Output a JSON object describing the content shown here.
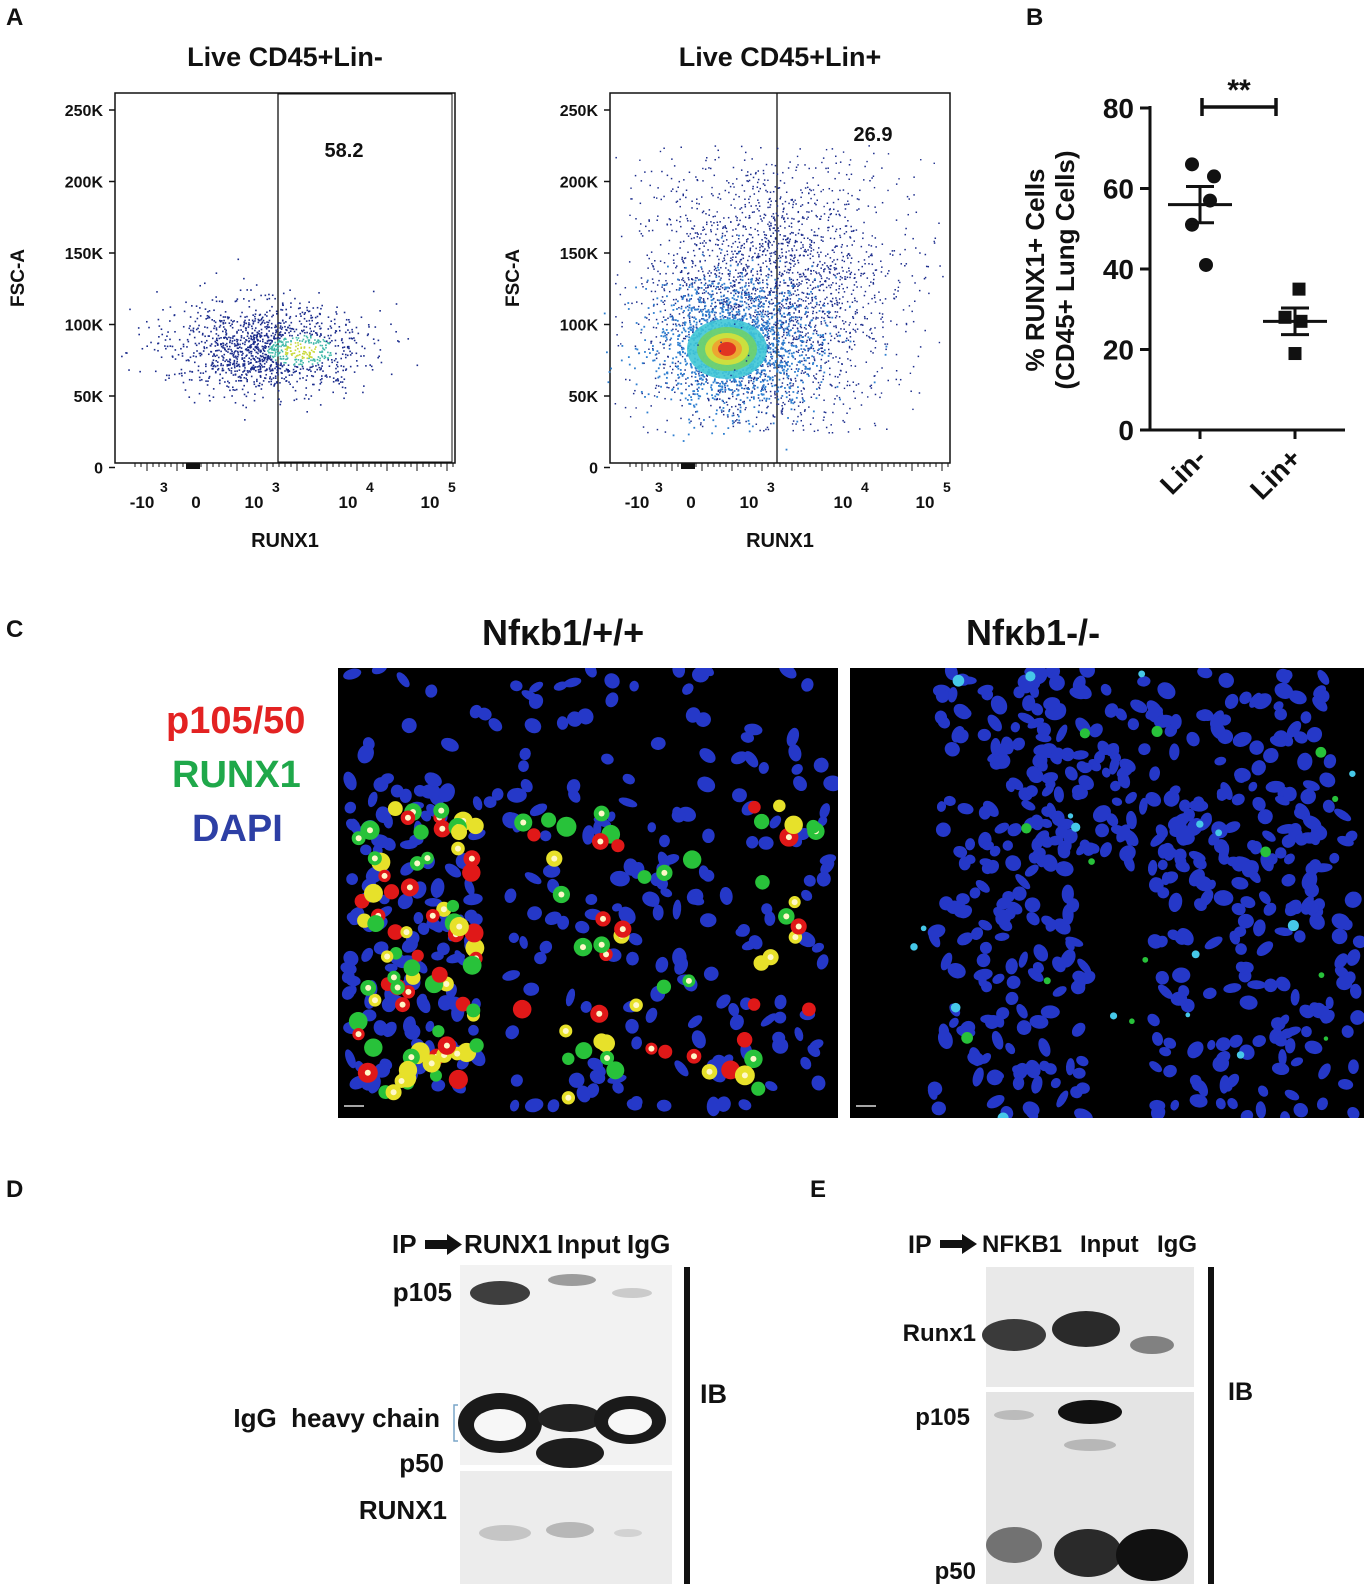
{
  "panels": {
    "A": {
      "letter": "A",
      "plots": [
        {
          "title": "Live CD45+Lin-",
          "ylabel": "FSC-A",
          "xlabel": "RUNX1",
          "gate_value": "58.2",
          "yticks": [
            "250K",
            "200K",
            "150K",
            "100K",
            "50K",
            "0"
          ],
          "xticks": [
            "-10",
            "0",
            "10",
            "10",
            "10"
          ],
          "xtick_exponents": [
            "3",
            "",
            "3",
            "4",
            "5"
          ]
        },
        {
          "title": "Live CD45+Lin+",
          "ylabel": "FSC-A",
          "xlabel": "RUNX1",
          "gate_value": "26.9",
          "yticks": [
            "250K",
            "200K",
            "150K",
            "100K",
            "50K",
            "0"
          ],
          "xticks": [
            "-10",
            "0",
            "10",
            "10",
            "10"
          ],
          "xtick_exponents": [
            "3",
            "",
            "3",
            "4",
            "5"
          ]
        }
      ]
    },
    "B": {
      "letter": "B",
      "significance": "**"
    },
    "C": {
      "letter": "C",
      "titles": [
        "Nfκb1/+/+",
        "Nfκb1-/-"
      ],
      "legend": [
        {
          "label": "p105/50",
          "color": "#e32222"
        },
        {
          "label": "RUNX1",
          "color": "#1fa84a"
        },
        {
          "label": "DAPI",
          "color": "#2d3fa5"
        }
      ]
    },
    "D": {
      "letter": "D",
      "ip_label": "IP",
      "lanes": [
        "RUNX1",
        "Input",
        "IgG"
      ],
      "rows": [
        "p105",
        "IgG  heavy chain",
        "p50",
        "RUNX1"
      ],
      "ib_label": "IB"
    },
    "E": {
      "letter": "E",
      "ip_label": "IP",
      "lanes": [
        "NFKB1",
        "Input",
        "IgG"
      ],
      "rows": [
        "Runx1",
        "p105",
        "p50"
      ],
      "ib_label": "IB"
    }
  },
  "chart_data": {
    "type": "scatter",
    "title": "",
    "xlabel": "",
    "ylabel": "% RUNX1+ Cells (CD45+ Lung Cells)",
    "ylabel_lines": [
      "% RUNX1+ Cells",
      "(CD45+ Lung Cells)"
    ],
    "categories": [
      "Lin-",
      "Lin+"
    ],
    "ylim": [
      0,
      80
    ],
    "yticks": [
      0,
      20,
      40,
      60,
      80
    ],
    "series": [
      {
        "category": "Lin-",
        "marker": "circle",
        "values": [
          66,
          63,
          57,
          51,
          41
        ],
        "mean": 56,
        "sem": 4.5
      },
      {
        "category": "Lin+",
        "marker": "square",
        "values": [
          35,
          28,
          27,
          19
        ],
        "mean": 27,
        "sem": 3.3
      }
    ],
    "annotation": "**"
  }
}
